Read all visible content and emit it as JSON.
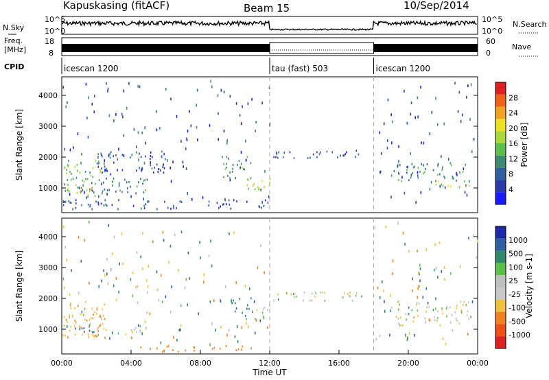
{
  "header": {
    "station": "Kapuskasing (fitACF)",
    "beam": "Beam 15",
    "date": "10/Sep/2014"
  },
  "noise_panel": {
    "left_label": "N.Sky",
    "right_label": "N.Search",
    "ticks": [
      "10^5",
      "10^0"
    ]
  },
  "freq_panel": {
    "left_label_1": "Freq.",
    "left_label_2": "[MHz]",
    "left_ticks": [
      "18",
      "8"
    ],
    "right_label": "Nave",
    "right_ticks": [
      "60",
      "0"
    ]
  },
  "cpid": {
    "label": "CPID",
    "segments": [
      {
        "name": "icescan 1200",
        "start": 0,
        "end": 12
      },
      {
        "name": "tau (fast) 503",
        "start": 12,
        "end": 18
      },
      {
        "name": "icescan 1200",
        "start": 18,
        "end": 24
      }
    ]
  },
  "power_scale": {
    "label": "Power [dB]",
    "ticks": [
      "4",
      "8",
      "12",
      "16",
      "20",
      "24",
      "28"
    ],
    "colors": [
      "#1a1aff",
      "#2a3aa8",
      "#2e5fa0",
      "#3c8a72",
      "#5bbf4a",
      "#a8d83a",
      "#f0e020",
      "#f4a020",
      "#f06018",
      "#e02020"
    ]
  },
  "velocity_scale": {
    "label": "Velocity [m s-1]",
    "ticks": [
      "1000",
      "500",
      "100",
      "25",
      "-25",
      "-100",
      "-500",
      "-1000"
    ],
    "colors": [
      "#1a2aa8",
      "#2e5fa0",
      "#2e8a6a",
      "#5bbf4a",
      "#bfbfbf",
      "#c8c8c8",
      "#f4c040",
      "#f08020",
      "#f05018",
      "#e02020"
    ]
  },
  "axes": {
    "y_label": "Slant Range [km]",
    "y_ticks": [
      "1000",
      "2000",
      "3000",
      "4000"
    ],
    "x_label": "Time UT",
    "x_ticks": [
      "00:00",
      "04:00",
      "08:00",
      "12:00",
      "16:00",
      "20:00",
      "00:00"
    ]
  },
  "chart_data": [
    {
      "type": "heatmap",
      "title": "Power",
      "xlabel": "Time UT",
      "ylabel": "Slant Range [km]",
      "xlim": [
        0,
        24
      ],
      "ylim": [
        200,
        4600
      ],
      "colorbar": {
        "label": "Power [dB]",
        "range": [
          0,
          30
        ]
      },
      "regions": [
        {
          "t0": 0.0,
          "t1": 2.5,
          "r0": 700,
          "r1": 1900,
          "level": 14
        },
        {
          "t0": 0.3,
          "t1": 2.0,
          "r0": 850,
          "r1": 1000,
          "level": 24
        },
        {
          "t0": 0.0,
          "t1": 5.0,
          "r0": 800,
          "r1": 1300,
          "level": 10
        },
        {
          "t0": 2.0,
          "t1": 6.0,
          "r0": 1400,
          "r1": 2200,
          "level": 6
        },
        {
          "t0": 9.2,
          "t1": 11.0,
          "r0": 1300,
          "r1": 2000,
          "level": 12
        },
        {
          "t0": 10.5,
          "t1": 12.0,
          "r0": 900,
          "r1": 1300,
          "level": 16
        },
        {
          "t0": 12.2,
          "t1": 17.3,
          "r0": 1950,
          "r1": 2200,
          "level": 5
        },
        {
          "t0": 19.0,
          "t1": 23.5,
          "r0": 1200,
          "r1": 1800,
          "level": 10
        },
        {
          "t0": 21.5,
          "t1": 23.5,
          "r0": 1000,
          "r1": 1200,
          "level": 16
        },
        {
          "t0": 0.0,
          "t1": 12.0,
          "r0": 300,
          "r1": 600,
          "level": 6
        }
      ]
    },
    {
      "type": "heatmap",
      "title": "Velocity",
      "xlabel": "Time UT",
      "ylabel": "Slant Range [km]",
      "xlim": [
        0,
        24
      ],
      "ylim": [
        200,
        4600
      ],
      "colorbar": {
        "label": "Velocity [m s-1]",
        "range": [
          -1000,
          1000
        ]
      },
      "regions": [
        {
          "t0": 0.0,
          "t1": 2.5,
          "r0": 700,
          "r1": 1900,
          "level": -80
        },
        {
          "t0": 0.3,
          "t1": 2.0,
          "r0": 850,
          "r1": 1100,
          "level": 150
        },
        {
          "t0": 2.0,
          "t1": 5.0,
          "r0": 800,
          "r1": 1100,
          "level": 0
        },
        {
          "t0": 9.5,
          "t1": 11.0,
          "r0": 1500,
          "r1": 2000,
          "level": 120
        },
        {
          "t0": 10.5,
          "t1": 12.0,
          "r0": 1300,
          "r1": 1700,
          "level": 0
        },
        {
          "t0": 12.2,
          "t1": 17.3,
          "r0": 1900,
          "r1": 2200,
          "level": 0
        },
        {
          "t0": 19.0,
          "t1": 23.5,
          "r0": 1100,
          "r1": 1900,
          "level": 0
        },
        {
          "t0": 4.0,
          "t1": 11.0,
          "r0": 250,
          "r1": 450,
          "level": -200
        }
      ]
    }
  ]
}
